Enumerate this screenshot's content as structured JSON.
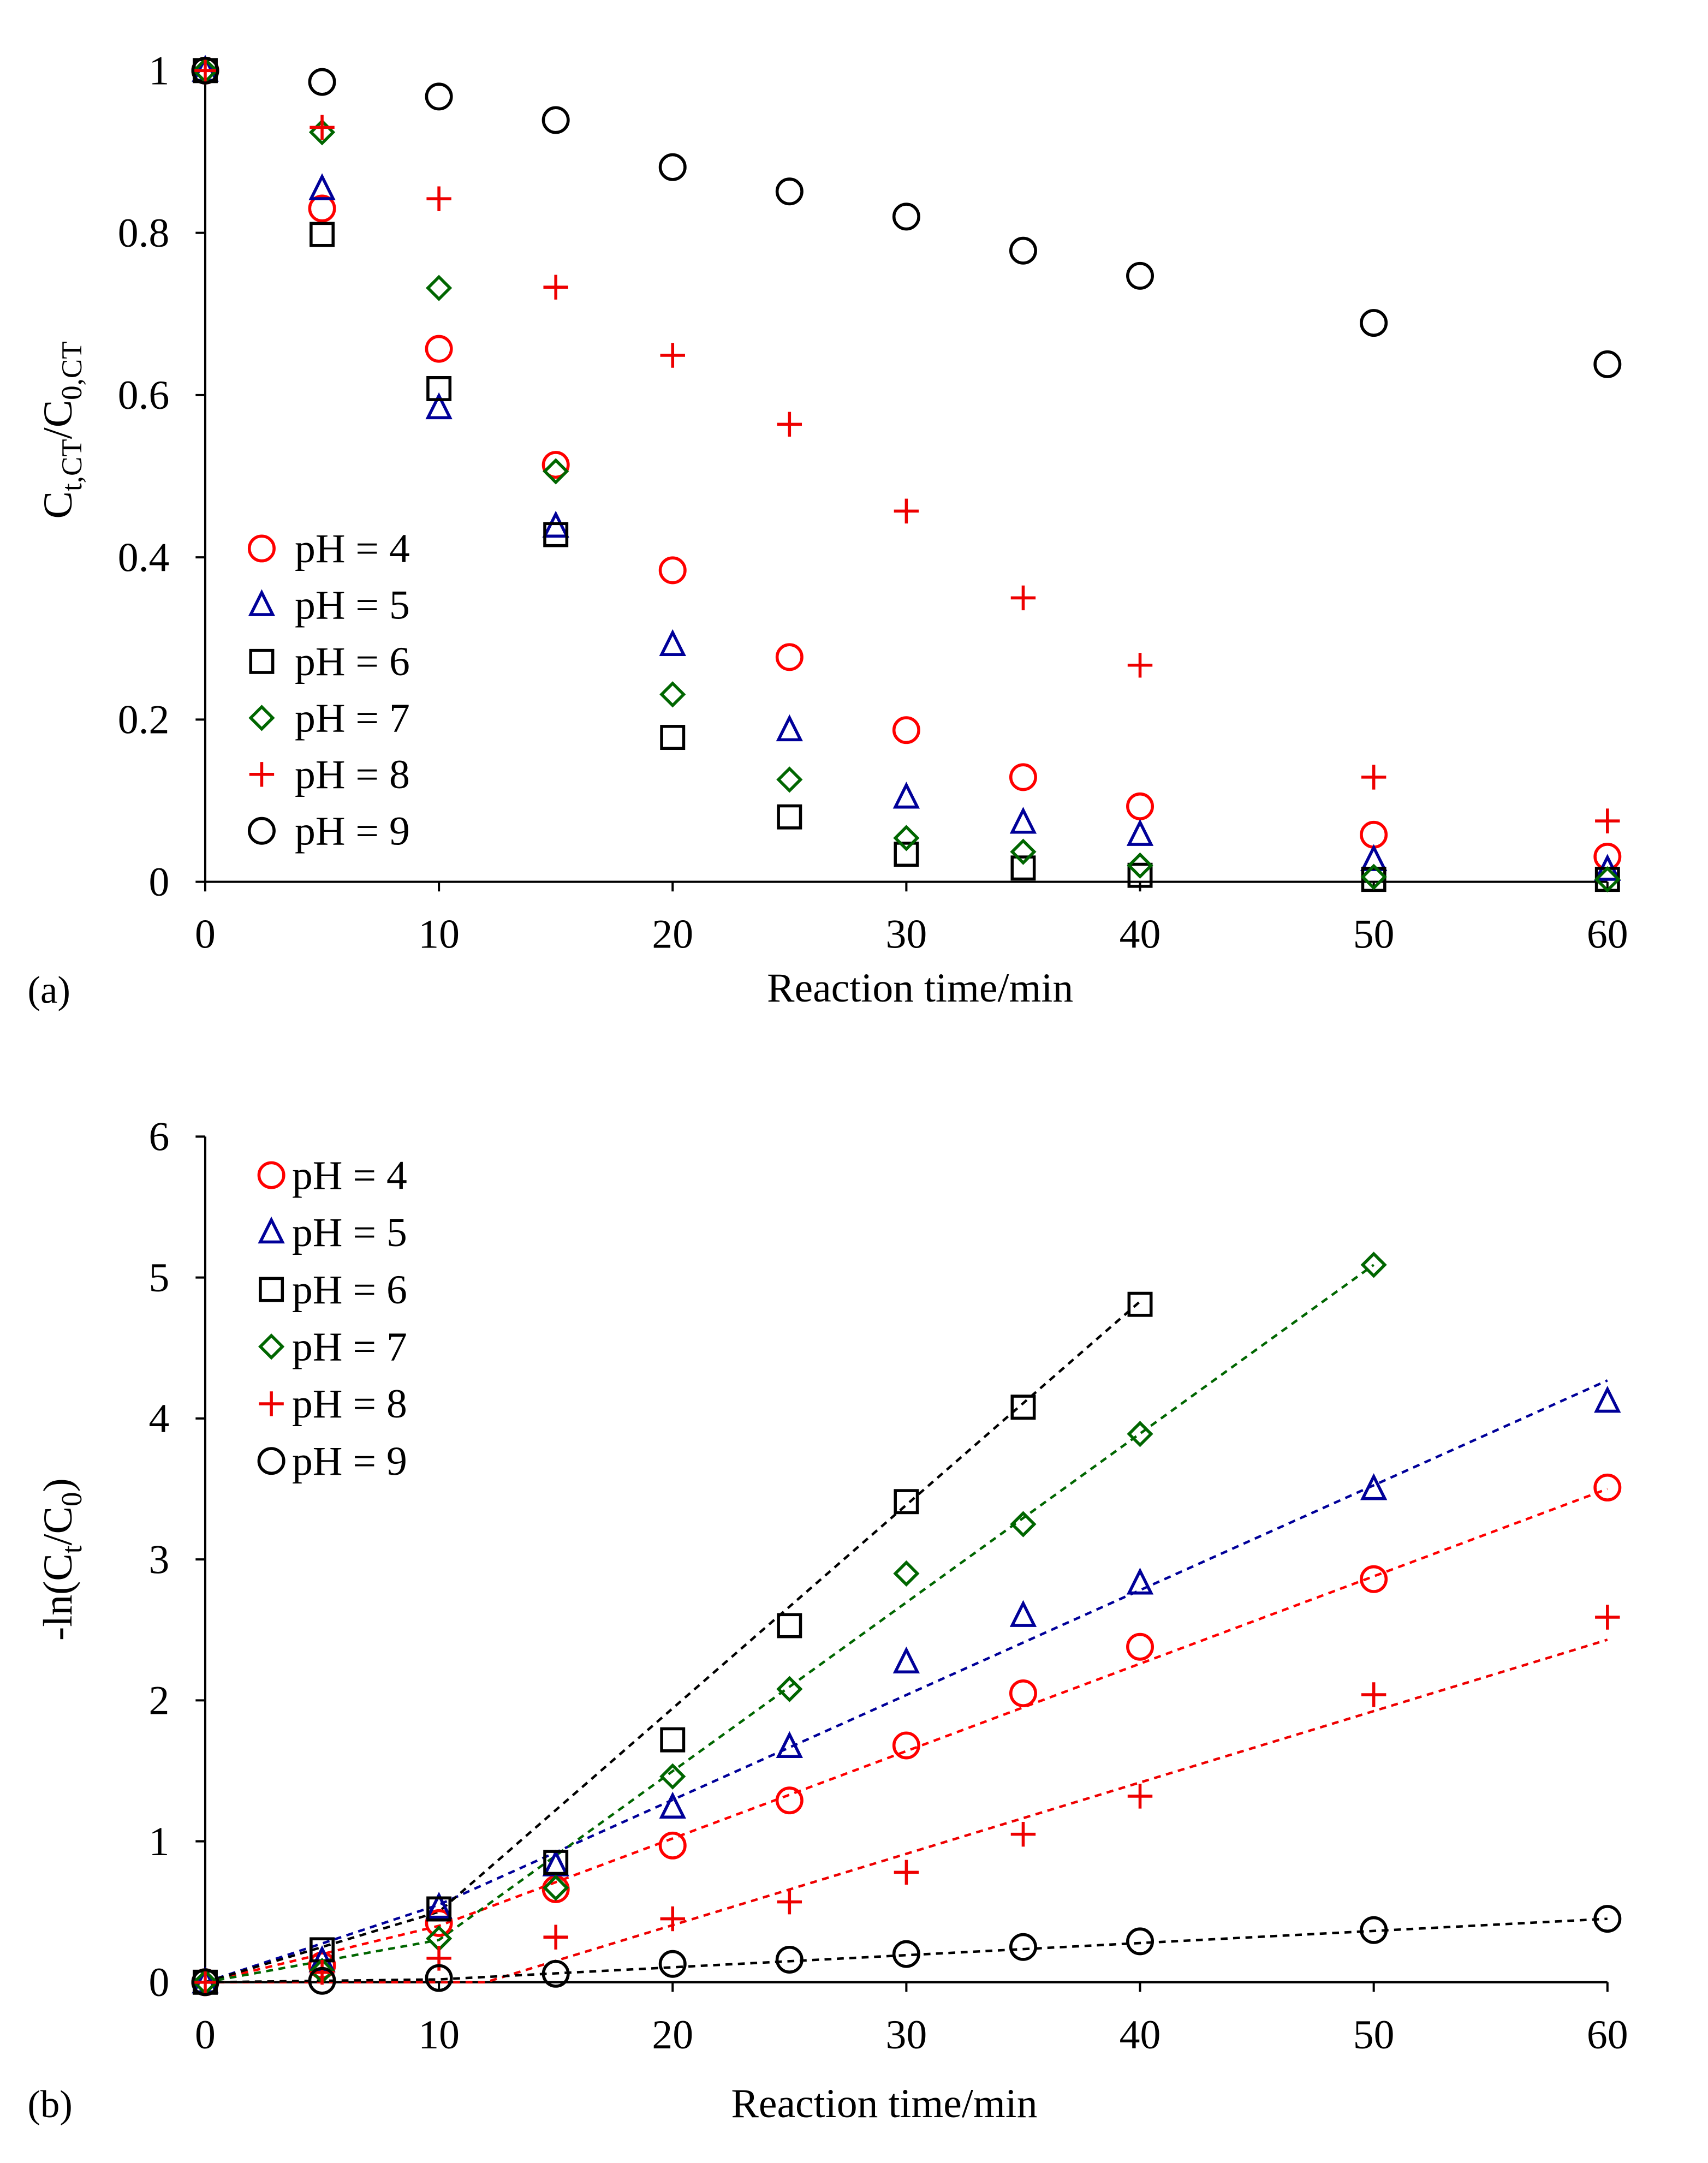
{
  "colors": {
    "pH4": "#ff0000",
    "pH5": "#000099",
    "pH6": "#000000",
    "pH7": "#006600",
    "pH8": "#ee0000",
    "pH9": "#000000"
  },
  "chart_data": [
    {
      "panel_label": "(a)",
      "type": "scatter",
      "xlabel": "Reaction time/min",
      "ylabel_main": "C",
      "ylabel_sub1": "t,CT",
      "ylabel_mid": "/C",
      "ylabel_sub2": "0,CT",
      "xlim": [
        0,
        60
      ],
      "ylim": [
        0,
        1
      ],
      "xticks": [
        0,
        10,
        20,
        30,
        40,
        50,
        60
      ],
      "yticks": [
        0,
        0.2,
        0.4,
        0.6,
        0.8,
        1
      ],
      "ytick_labels": [
        "0",
        "0.2",
        "0.4",
        "0.6",
        "0.8",
        "1"
      ],
      "legend_position": "center-left",
      "x": [
        0,
        5,
        10,
        15,
        20,
        25,
        30,
        35,
        40,
        50,
        60
      ],
      "series": [
        {
          "name": "pH = 4",
          "key": "pH4",
          "marker": "circle",
          "values": [
            1,
            0.83,
            0.657,
            0.514,
            0.384,
            0.277,
            0.187,
            0.129,
            0.093,
            0.058,
            0.031
          ]
        },
        {
          "name": "pH = 5",
          "key": "pH5",
          "marker": "triangle",
          "values": [
            1,
            0.854,
            0.584,
            0.438,
            0.292,
            0.187,
            0.104,
            0.073,
            0.058,
            0.027,
            0.015
          ]
        },
        {
          "name": "pH = 6",
          "key": "pH6",
          "marker": "square",
          "values": [
            1,
            0.798,
            0.608,
            0.428,
            0.178,
            0.08,
            0.034,
            0.017,
            0.008,
            0.003,
            0.003
          ]
        },
        {
          "name": "pH = 7",
          "key": "pH7",
          "marker": "diamond",
          "values": [
            1,
            0.924,
            0.732,
            0.506,
            0.231,
            0.126,
            0.054,
            0.037,
            0.02,
            0.006,
            0.003
          ]
        },
        {
          "name": "pH = 8",
          "key": "pH8",
          "marker": "plus",
          "values": [
            1,
            0.93,
            0.842,
            0.733,
            0.649,
            0.564,
            0.457,
            0.35,
            0.267,
            0.129,
            0.075
          ]
        },
        {
          "name": "pH = 9",
          "key": "pH9",
          "marker": "circle",
          "values": [
            1,
            0.986,
            0.968,
            0.939,
            0.881,
            0.851,
            0.82,
            0.778,
            0.747,
            0.689,
            0.638
          ]
        }
      ]
    },
    {
      "panel_label": "(b)",
      "type": "scatter",
      "xlabel": "Reaction time/min",
      "ylabel_main": "-ln(C",
      "ylabel_sub1": "t",
      "ylabel_mid": "/C",
      "ylabel_sub2": "0",
      "ylabel_end": ")",
      "xlim": [
        0,
        60
      ],
      "ylim": [
        0,
        6
      ],
      "xticks": [
        0,
        10,
        20,
        30,
        40,
        50,
        60
      ],
      "yticks": [
        0,
        1,
        2,
        3,
        4,
        5,
        6
      ],
      "ytick_labels": [
        "0",
        "1",
        "2",
        "3",
        "4",
        "5",
        "6"
      ],
      "legend_position": "top-left",
      "x": [
        0,
        5,
        10,
        15,
        20,
        25,
        30,
        35,
        40,
        50,
        60
      ],
      "series": [
        {
          "name": "pH = 4",
          "key": "pH4",
          "marker": "circle",
          "values": [
            0,
            0.12,
            0.42,
            0.66,
            0.97,
            1.29,
            1.68,
            2.05,
            2.38,
            2.86,
            3.51
          ],
          "fit": [
            [
              0,
              0
            ],
            [
              10,
              0.4
            ],
            [
              60,
              3.5
            ]
          ]
        },
        {
          "name": "pH = 5",
          "key": "pH5",
          "marker": "triangle",
          "values": [
            0,
            0.15,
            0.53,
            0.83,
            1.24,
            1.67,
            2.27,
            2.6,
            2.83,
            3.5,
            4.12
          ],
          "fit": [
            [
              0,
              0
            ],
            [
              10,
              0.55
            ],
            [
              60,
              4.27
            ]
          ]
        },
        {
          "name": "pH = 6",
          "key": "pH6",
          "marker": "square",
          "values": [
            0,
            0.23,
            0.52,
            0.85,
            1.72,
            2.53,
            3.41,
            4.08,
            4.81,
            null,
            null
          ],
          "fit": [
            [
              0,
              0
            ],
            [
              10,
              0.5
            ],
            [
              40,
              4.83
            ]
          ]
        },
        {
          "name": "pH = 7",
          "key": "pH7",
          "marker": "diamond",
          "values": [
            0,
            0.08,
            0.31,
            0.67,
            1.46,
            2.08,
            2.9,
            3.25,
            3.89,
            5.09,
            null
          ],
          "fit": [
            [
              0,
              0
            ],
            [
              10,
              0.3
            ],
            [
              50,
              5.09
            ]
          ]
        },
        {
          "name": "pH = 8",
          "key": "pH8",
          "marker": "plus",
          "values": [
            0,
            0.07,
            0.17,
            0.32,
            0.45,
            0.57,
            0.78,
            1.05,
            1.32,
            2.04,
            2.59
          ],
          "fit": [
            [
              0,
              0
            ],
            [
              12,
              0
            ],
            [
              60,
              2.43
            ]
          ]
        },
        {
          "name": "pH = 9",
          "key": "pH9",
          "marker": "circle",
          "values": [
            0,
            0.01,
            0.03,
            0.06,
            0.13,
            0.16,
            0.2,
            0.25,
            0.29,
            0.37,
            0.45
          ],
          "fit": [
            [
              0,
              0
            ],
            [
              10,
              0.02
            ],
            [
              60,
              0.45
            ]
          ]
        }
      ]
    }
  ]
}
